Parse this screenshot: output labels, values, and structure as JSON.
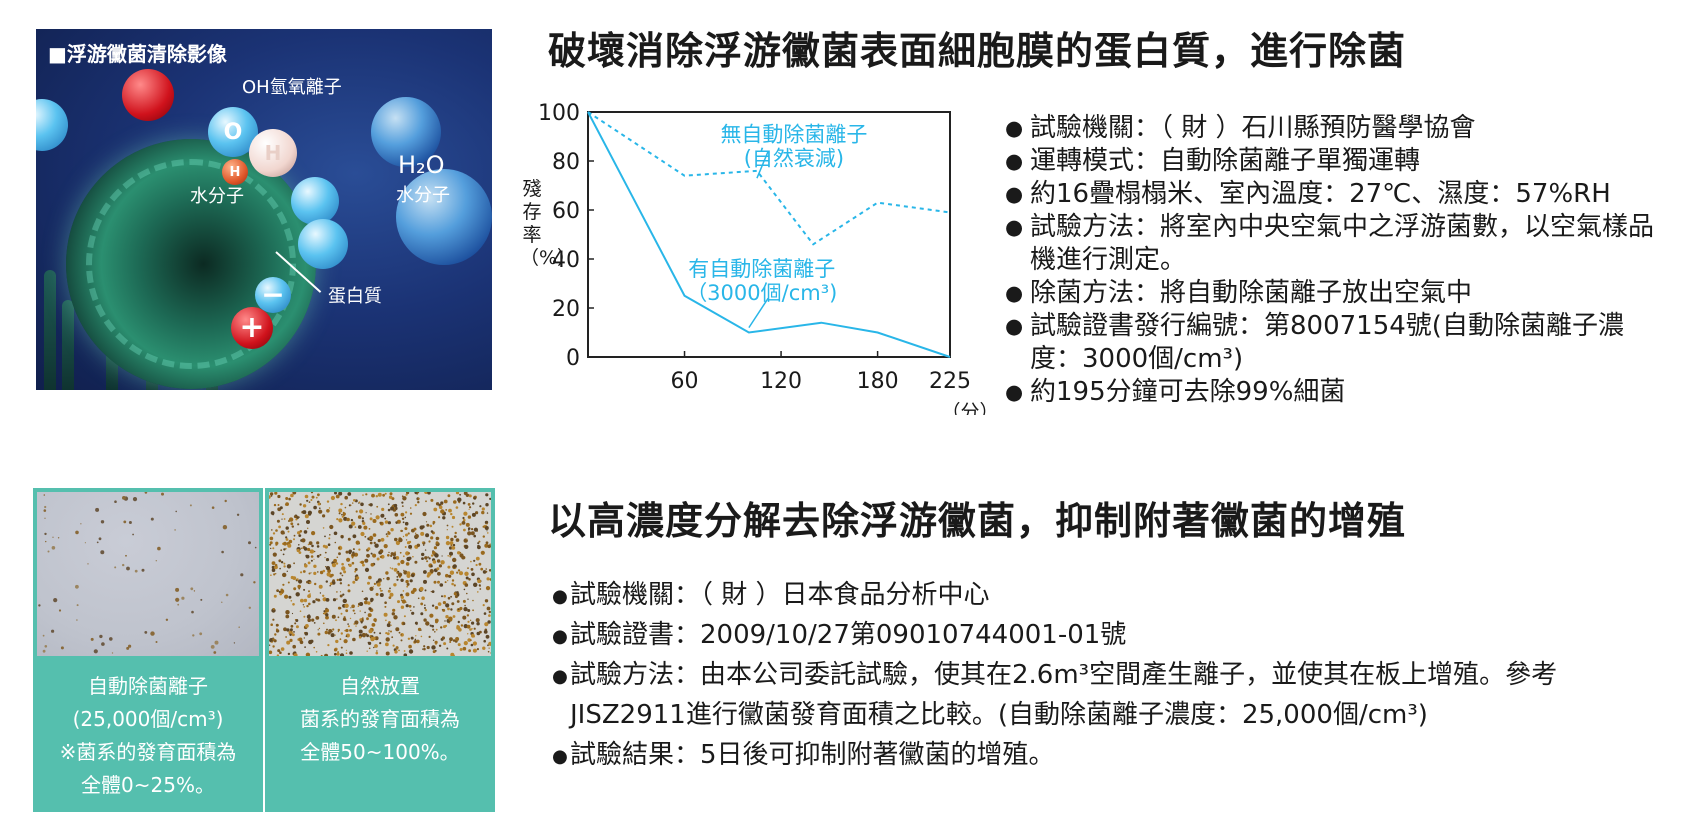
{
  "illustration": {
    "title": "■浮游黴菌清除影像",
    "labels": {
      "oh_ion": "OH氫氧離子",
      "water_left": "水分子",
      "h2o": "H₂O",
      "water_right": "水分子",
      "protein": "蛋白質"
    },
    "glyphs": {
      "o": "O",
      "h": "H",
      "h_small": "H",
      "minus": "−",
      "plus": "+"
    }
  },
  "section1": {
    "heading": "破壞消除浮游黴菌表面細胞膜的蛋白質，進行除菌",
    "bullets": [
      "試驗機關：（ 財 ）石川縣預防醫學協會",
      "運轉模式：自動除菌離子單獨運轉",
      "約16疊榻榻米、室內溫度：27℃、濕度：57%RH",
      "試驗方法：將室內中央空氣中之浮游菌數，以空氣樣品機進行測定。",
      "除菌方法：將自動除菌離子放出空氣中",
      "試驗證書發行編號：第8007154號(自動除菌離子濃度：3000個/cm³)",
      "約195分鐘可去除99%細菌"
    ]
  },
  "chart_data": {
    "type": "line",
    "ylabel": "殘存率（%）",
    "xlabel": "（分）",
    "xlim": [
      0,
      225
    ],
    "ylim": [
      0,
      100
    ],
    "x_ticks": [
      "60",
      "120",
      "180",
      "225"
    ],
    "y_ticks": [
      "100",
      "80",
      "60",
      "40",
      "20",
      "0"
    ],
    "grid": false,
    "series": [
      {
        "name": "無自動除菌離子 (自然衰減)",
        "label_lines": [
          "無自動除菌離子",
          "(自然衰減)"
        ],
        "style": "dashed",
        "color": "#29b6e8",
        "x": [
          0,
          60,
          105,
          140,
          180,
          225
        ],
        "y": [
          100,
          74,
          76,
          46,
          63,
          59
        ]
      },
      {
        "name": "有自動除菌離子 （3000個/cm³)",
        "label_lines": [
          "有自動除菌離子",
          "（3000個/cm³)"
        ],
        "style": "solid",
        "color": "#29b6e8",
        "x": [
          0,
          60,
          100,
          145,
          180,
          225
        ],
        "y": [
          100,
          25,
          10,
          14,
          10,
          0
        ]
      }
    ]
  },
  "section2": {
    "heading": "以高濃度分解去除浮游黴菌，抑制附著黴菌的增殖",
    "bullets": [
      "試驗機關：（ 財 ）日本食品分析中心",
      "試驗證書：2009/10/27第09010744001-01號",
      "試驗方法：由本公司委託試驗，使其在2.6m³空間產生離子，並使其在板上增殖。參考JISZ2911進行黴菌發育面積之比較。(自動除菌離子濃度：25,000個/cm³)",
      "試驗結果：5日後可抑制附著黴菌的增殖。"
    ]
  },
  "panels": [
    {
      "lines": [
        "自動除菌離子",
        "(25,000個/cm³)",
        "※菌系的發育面積為",
        "全體0~25%。"
      ]
    },
    {
      "lines": [
        "自然放置",
        "菌系的發育面積為",
        "全體50~100%。"
      ]
    }
  ],
  "colors": {
    "accent": "#29b6e8",
    "panel": "#55bfae"
  }
}
